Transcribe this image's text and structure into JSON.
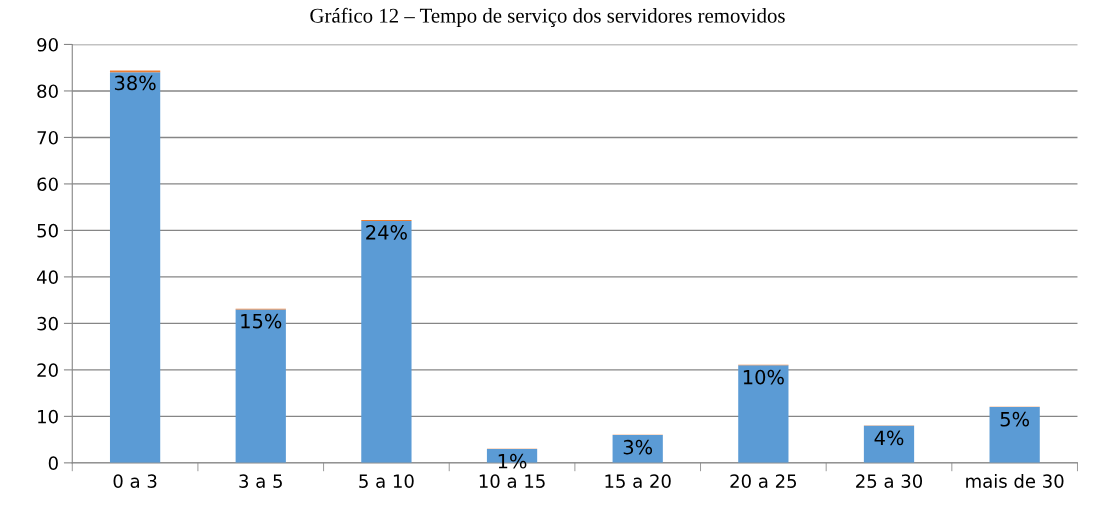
{
  "chart_data": {
    "type": "bar",
    "title": "Gráfico 12 – Tempo de serviço dos servidores removidos",
    "categories": [
      "0 a 3",
      "3 a 5",
      "5 a 10",
      "10 a 15",
      "15 a 20",
      "20 a 25",
      "25 a 30",
      "mais de 30"
    ],
    "stacked": true,
    "series": [
      {
        "color": "#5b9bd5",
        "values": [
          84,
          33,
          52,
          3,
          6,
          21,
          8,
          12
        ]
      },
      {
        "color": "#ed7d31",
        "values": [
          0.38,
          0.15,
          0.24,
          0.01,
          0.03,
          0.1,
          0.04,
          0.05
        ],
        "value_labels": [
          "38%",
          "15%",
          "24%",
          "1%",
          "3%",
          "10%",
          "4%",
          "5%"
        ]
      }
    ],
    "ylim": [
      0,
      90
    ],
    "yticks": [
      0,
      10,
      20,
      30,
      40,
      50,
      60,
      70,
      80,
      90
    ],
    "grid": "y",
    "legend": false
  }
}
